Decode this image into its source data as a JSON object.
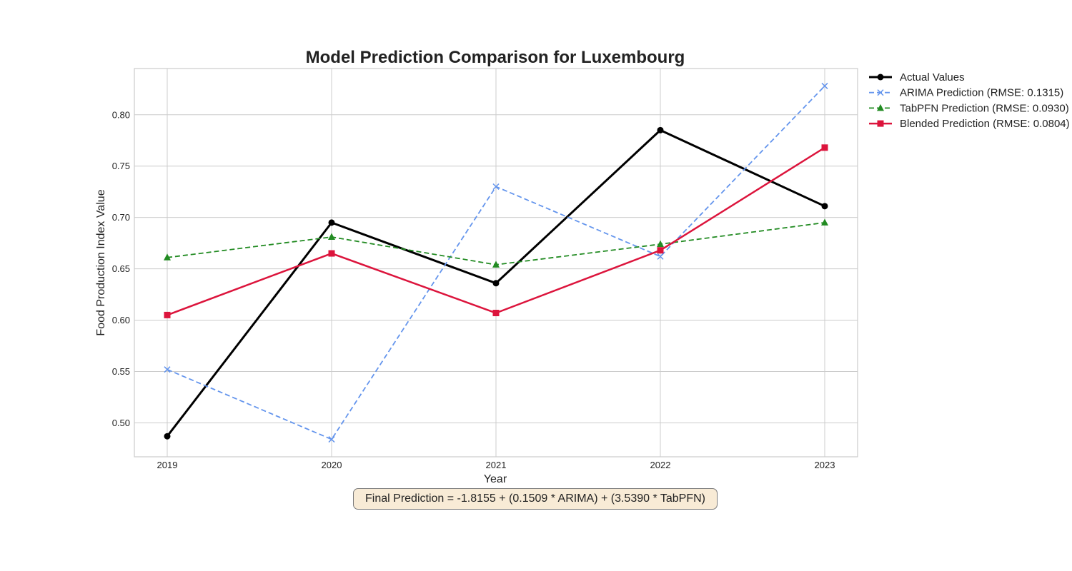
{
  "chart_data": {
    "type": "line",
    "title": "Model Prediction Comparison for Luxembourg",
    "xlabel": "Year",
    "ylabel": "Food Production Index Value",
    "x": [
      "2019",
      "2020",
      "2021",
      "2022",
      "2023"
    ],
    "xlim": [
      2018.8,
      2023.2
    ],
    "ylim": [
      0.467,
      0.845
    ],
    "yticks": [
      0.5,
      0.55,
      0.6,
      0.65,
      0.7,
      0.75,
      0.8
    ],
    "ytick_labels": [
      "0.50",
      "0.55",
      "0.60",
      "0.65",
      "0.70",
      "0.75",
      "0.80"
    ],
    "grid": true,
    "legend_position": "outside-top-right",
    "series": [
      {
        "name": "Actual Values",
        "values": [
          0.487,
          0.695,
          0.636,
          0.785,
          0.711
        ],
        "color": "#000000",
        "linestyle": "solid",
        "marker": "circle",
        "width": 3
      },
      {
        "name": "ARIMA Prediction (RMSE: 0.1315)",
        "values": [
          0.552,
          0.484,
          0.73,
          0.662,
          0.828
        ],
        "color": "#6495ed",
        "linestyle": "dashed",
        "marker": "x",
        "width": 1.8
      },
      {
        "name": "TabPFN Prediction (RMSE: 0.0930)",
        "values": [
          0.661,
          0.681,
          0.654,
          0.674,
          0.695
        ],
        "color": "#228b22",
        "linestyle": "dashed",
        "marker": "triangle",
        "width": 1.8
      },
      {
        "name": "Blended Prediction (RMSE: 0.0804)",
        "values": [
          0.605,
          0.665,
          0.607,
          0.668,
          0.768
        ],
        "color": "#dc143c",
        "linestyle": "solid",
        "marker": "square",
        "width": 2.5
      }
    ],
    "annotation": "Final Prediction = -1.8155 + (0.1509 * ARIMA) + (3.5390 * TabPFN)"
  }
}
